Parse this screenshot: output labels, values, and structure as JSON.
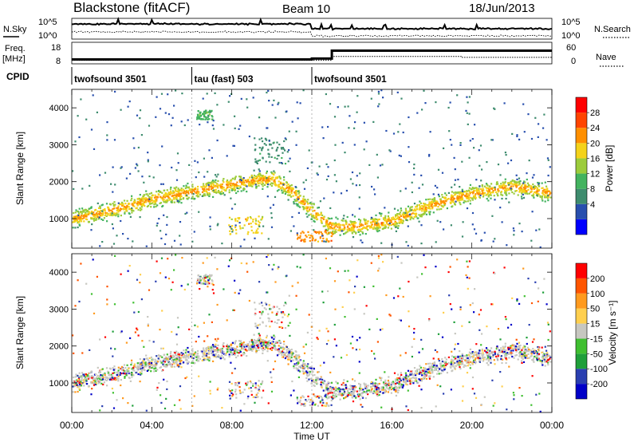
{
  "header": {
    "title": "Blackstone (fitACF)",
    "beam": "Beam 10",
    "date": "18/Jun/2013"
  },
  "control_panels": {
    "nsky_label": "N.Sky",
    "nsearch_label": "N.Search",
    "noise_ticks": [
      "10^5",
      "10^0"
    ],
    "freq_label_1": "Freq.",
    "freq_label_2": "[MHz]",
    "freq_ticks": [
      "18",
      "8"
    ],
    "nave_label": "Nave",
    "nave_ticks": [
      "60",
      "0"
    ],
    "cpid_label": "CPID",
    "cpid_segments": [
      {
        "name": "twofsound 3501",
        "start_hour": 0,
        "end_hour": 6
      },
      {
        "name": "tau (fast) 503",
        "start_hour": 6,
        "end_hour": 12
      },
      {
        "name": "twofsound 3501",
        "start_hour": 12,
        "end_hour": 24
      }
    ],
    "freq_series_mhz": [
      {
        "start_hour": 0,
        "end_hour": 12,
        "value": 10.5
      },
      {
        "start_hour": 12,
        "end_hour": 13,
        "value": 11
      },
      {
        "start_hour": 13,
        "end_hour": 24,
        "value": 15.5
      }
    ],
    "nave_series": [
      {
        "start_hour": 0,
        "end_hour": 13,
        "value": 12
      },
      {
        "start_hour": 13,
        "end_hour": 19.5,
        "value": 25
      },
      {
        "start_hour": 19.5,
        "end_hour": 24,
        "value": 22
      }
    ]
  },
  "colors": {
    "power": [
      "#0000ff",
      "#284fae",
      "#3e8c6e",
      "#43b35f",
      "#9ccc3b",
      "#f4d21a",
      "#ff8f00",
      "#ff4400",
      "#ff0000"
    ],
    "velocity": [
      "#ff0000",
      "#ff5500",
      "#ff9a1e",
      "#ffcf4e",
      "#c7c7c0",
      "#3fbf30",
      "#1f9f3a",
      "#2a3fb0",
      "#0000c8"
    ]
  },
  "chart_data": [
    {
      "type": "heatmap",
      "title": "",
      "xlabel": "Time UT",
      "ylabel": "Slant Range [km]",
      "xlim": [
        0,
        24
      ],
      "ylim": [
        200,
        4500
      ],
      "x_ticks": [
        "00:00",
        "04:00",
        "08:00",
        "12:00",
        "16:00",
        "20:00",
        "00:00"
      ],
      "y_ticks": [
        "1000",
        "2000",
        "3000",
        "4000"
      ],
      "colorbar_label": "Power [dB]",
      "colorbar_ticks": [
        "28",
        "24",
        "20",
        "16",
        "12",
        "8",
        "4"
      ],
      "value_range": [
        0,
        32
      ],
      "ridge_km": [
        [
          0,
          1000
        ],
        [
          2,
          1250
        ],
        [
          4,
          1550
        ],
        [
          6,
          1750
        ],
        [
          7,
          1850
        ],
        [
          8,
          1950
        ],
        [
          9,
          2050
        ],
        [
          10,
          2100
        ],
        [
          11,
          1750
        ],
        [
          12,
          1200
        ],
        [
          13,
          800
        ],
        [
          14,
          800
        ],
        [
          16,
          950
        ],
        [
          18,
          1400
        ],
        [
          20,
          1700
        ],
        [
          22,
          1900
        ],
        [
          24,
          1700
        ]
      ],
      "features": [
        {
          "x0": 7.8,
          "x1": 9.5,
          "y0": 600,
          "y1": 1100,
          "level": 22
        },
        {
          "x0": 6.2,
          "x1": 7.0,
          "y0": 3700,
          "y1": 3950,
          "level": 14
        },
        {
          "x0": 9.0,
          "x1": 10.8,
          "y0": 2500,
          "y1": 3200,
          "level": 10
        },
        {
          "x0": 11.2,
          "x1": 13.0,
          "y0": 400,
          "y1": 700,
          "level": 26
        }
      ]
    },
    {
      "type": "heatmap",
      "title": "",
      "xlabel": "Time UT",
      "ylabel": "Slant Range [km]",
      "xlim": [
        0,
        24
      ],
      "ylim": [
        200,
        4500
      ],
      "x_ticks": [
        "00:00",
        "04:00",
        "08:00",
        "12:00",
        "16:00",
        "20:00",
        "00:00"
      ],
      "y_ticks": [
        "1000",
        "2000",
        "3000",
        "4000"
      ],
      "colorbar_label": "Velocity [m s⁻¹]",
      "colorbar_ticks": [
        "200",
        "100",
        "50",
        "15",
        "-15",
        "-50",
        "-100",
        "-200"
      ],
      "value_range": [
        -250,
        250
      ]
    }
  ]
}
